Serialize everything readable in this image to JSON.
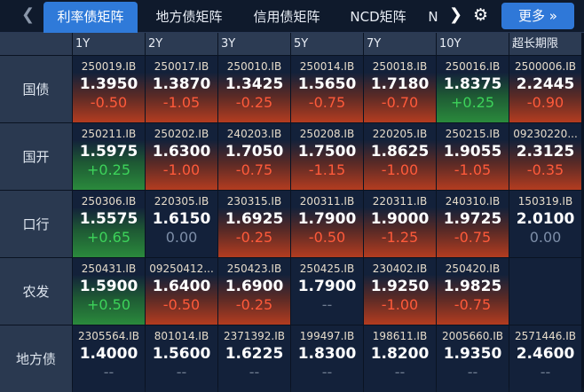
{
  "nav": {
    "prev_icon": "chevron-left-icon",
    "next_icon": "chevron-right-icon",
    "tabs": [
      {
        "label": "利率债矩阵",
        "active": true
      },
      {
        "label": "地方债矩阵",
        "active": false
      },
      {
        "label": "信用债矩阵",
        "active": false
      },
      {
        "label": "NCD矩阵",
        "active": false
      },
      {
        "label": "N",
        "active": false
      }
    ],
    "settings_icon": "gear-icon",
    "more_label": "更多 »"
  },
  "colors": {
    "accent": "#2f7ad9",
    "up": "#3dd35a",
    "down": "#ff5a3a",
    "flat": "#7d8ea8"
  },
  "columns": [
    "1Y",
    "2Y",
    "3Y",
    "5Y",
    "7Y",
    "10Y",
    "超长期限"
  ],
  "rows": [
    {
      "label": "国债",
      "cells": [
        {
          "code": "250019.IB",
          "yield": "1.3950",
          "change": "-0.50",
          "trend": "down"
        },
        {
          "code": "250017.IB",
          "yield": "1.3870",
          "change": "-1.05",
          "trend": "down"
        },
        {
          "code": "250010.IB",
          "yield": "1.3425",
          "change": "-0.25",
          "trend": "down"
        },
        {
          "code": "250014.IB",
          "yield": "1.5650",
          "change": "-0.75",
          "trend": "down"
        },
        {
          "code": "250018.IB",
          "yield": "1.7180",
          "change": "-0.70",
          "trend": "down"
        },
        {
          "code": "250016.IB",
          "yield": "1.8375",
          "change": "+0.25",
          "trend": "up"
        },
        {
          "code": "2500006.IB",
          "yield": "2.2445",
          "change": "-0.90",
          "trend": "down"
        }
      ]
    },
    {
      "label": "国开",
      "cells": [
        {
          "code": "250211.IB",
          "yield": "1.5975",
          "change": "+0.25",
          "trend": "up"
        },
        {
          "code": "250202.IB",
          "yield": "1.6300",
          "change": "-1.00",
          "trend": "down"
        },
        {
          "code": "240203.IB",
          "yield": "1.7050",
          "change": "-0.75",
          "trend": "down"
        },
        {
          "code": "250208.IB",
          "yield": "1.7500",
          "change": "-1.15",
          "trend": "down"
        },
        {
          "code": "220205.IB",
          "yield": "1.8625",
          "change": "-1.00",
          "trend": "down"
        },
        {
          "code": "250215.IB",
          "yield": "1.9055",
          "change": "-1.05",
          "trend": "down"
        },
        {
          "code": "09230220...",
          "yield": "2.3125",
          "change": "-0.35",
          "trend": "down"
        }
      ]
    },
    {
      "label": "口行",
      "cells": [
        {
          "code": "250306.IB",
          "yield": "1.5575",
          "change": "+0.65",
          "trend": "up"
        },
        {
          "code": "220305.IB",
          "yield": "1.6150",
          "change": "0.00",
          "trend": "flat"
        },
        {
          "code": "230315.IB",
          "yield": "1.6925",
          "change": "-0.25",
          "trend": "down"
        },
        {
          "code": "200311.IB",
          "yield": "1.7900",
          "change": "-0.50",
          "trend": "down"
        },
        {
          "code": "220311.IB",
          "yield": "1.9000",
          "change": "-1.25",
          "trend": "down"
        },
        {
          "code": "240310.IB",
          "yield": "1.9725",
          "change": "-0.75",
          "trend": "down"
        },
        {
          "code": "150319.IB",
          "yield": "2.0100",
          "change": "0.00",
          "trend": "flat"
        }
      ]
    },
    {
      "label": "农发",
      "cells": [
        {
          "code": "250431.IB",
          "yield": "1.5900",
          "change": "+0.50",
          "trend": "up"
        },
        {
          "code": "09250412...",
          "yield": "1.6400",
          "change": "-0.50",
          "trend": "down"
        },
        {
          "code": "250423.IB",
          "yield": "1.6900",
          "change": "-0.25",
          "trend": "down"
        },
        {
          "code": "250425.IB",
          "yield": "1.7900",
          "change": "--",
          "trend": "none"
        },
        {
          "code": "230402.IB",
          "yield": "1.9250",
          "change": "-1.00",
          "trend": "down"
        },
        {
          "code": "250420.IB",
          "yield": "1.9825",
          "change": "-0.75",
          "trend": "down"
        },
        null
      ]
    },
    {
      "label": "地方债",
      "cells": [
        {
          "code": "2305564.IB",
          "yield": "1.4000",
          "change": "--",
          "trend": "none"
        },
        {
          "code": "801014.IB",
          "yield": "1.5600",
          "change": "--",
          "trend": "none"
        },
        {
          "code": "2371392.IB",
          "yield": "1.6225",
          "change": "--",
          "trend": "none"
        },
        {
          "code": "199497.IB",
          "yield": "1.8300",
          "change": "--",
          "trend": "none"
        },
        {
          "code": "198611.IB",
          "yield": "1.8200",
          "change": "--",
          "trend": "none"
        },
        {
          "code": "2005660.IB",
          "yield": "1.9350",
          "change": "--",
          "trend": "none"
        },
        {
          "code": "2571446.IB",
          "yield": "2.4600",
          "change": "--",
          "trend": "none"
        }
      ]
    }
  ]
}
